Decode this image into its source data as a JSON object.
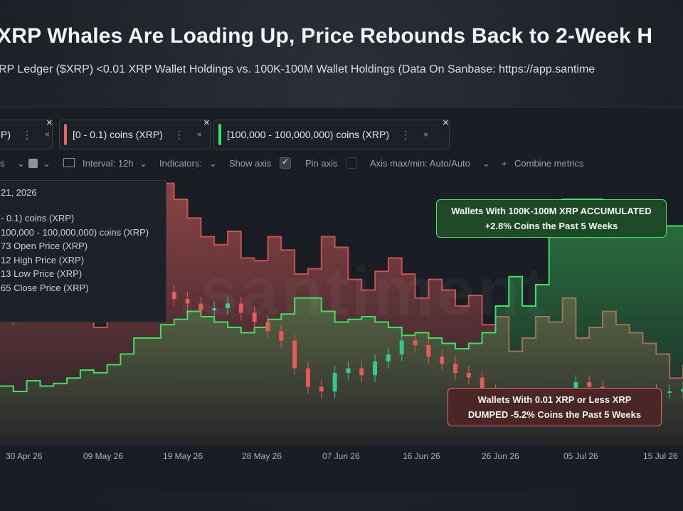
{
  "header": {
    "title": "XRP Whales Are Loading Up, Price Rebounds Back to 2-Week H",
    "subtitle": "RP Ledger ($XRP) <0.01 XRP Wallet Holdings vs. 100K-100M Wallet Holdings (Data On Sanbase: https://app.santime"
  },
  "tabs": [
    {
      "label": "P)",
      "color": "",
      "dots": "⋮",
      "close": "×"
    },
    {
      "label": "[0 - 0.1) coins (XRP)",
      "color": "#e8625f",
      "dots": "⋮",
      "close": "×"
    },
    {
      "label": "[100,000 - 100,000,000) coins (XRP)",
      "color": "#3ee062",
      "dots": "⋮",
      "close": "×"
    }
  ],
  "toolbar": {
    "interval": "Interval: 12h",
    "indicators": "Indicators:",
    "show_axis": "Show axis",
    "pin_axis": "Pin axis",
    "axis_maxmin": "Axis max/min: Auto/Auto",
    "combine": "Combine metrics",
    "plus": "+"
  },
  "tooltip": {
    "date": "21, 2026",
    "rows": [
      "- 0.1) coins (XRP)",
      "100,000  - 100,000,000) coins (XRP)",
      "73 Open Price (XRP)",
      "12 High Price (XRP)",
      "13 Low Price (XRP)",
      "65 Close Price (XRP)"
    ]
  },
  "watermark": ".santiment",
  "annotations": {
    "green_line1": "Wallets With 100K-100M XRP ACCUMULATED",
    "green_line2": "+2.8% Coins the Past 5 Weeks",
    "red_line1": "Wallets With 0.01 XRP or Less XRP",
    "red_line2": "DUMPED -5.2% Coins the Past 5 Weeks"
  },
  "colors": {
    "red": "#e8625f",
    "green": "#3ee062",
    "background": "#1a1d24"
  },
  "chart_data": {
    "type": "line",
    "x_ticks": [
      "30 Apr 26",
      "09 May 26",
      "19 May 26",
      "28 May 26",
      "07 Jun 26",
      "16 Jun 26",
      "26 Jun 26",
      "05 Jul 26",
      "15 Jul 26"
    ],
    "series": [
      {
        "name": "[0 - 0.1) coins (XRP)",
        "color": "#e8625f",
        "values": [
          0.62,
          0.52,
          0.58,
          0.55,
          0.47,
          0.52,
          0.62,
          0.44,
          0.48,
          0.6,
          0.57,
          0.55,
          0.98,
          0.92,
          0.85,
          0.78,
          0.75,
          0.8,
          0.7,
          0.69,
          0.78,
          0.73,
          0.64,
          0.66,
          0.78,
          0.74,
          0.62,
          0.58,
          0.65,
          0.7,
          0.64,
          0.55,
          0.62,
          0.58,
          0.52,
          0.56,
          0.45,
          0.48,
          0.35,
          0.4,
          0.48,
          0.46,
          0.55,
          0.4,
          0.44,
          0.5,
          0.45,
          0.42,
          0.38,
          0.34,
          0.25,
          0.3
        ]
      },
      {
        "name": "[100,000 - 100,000,000) coins (XRP)",
        "color": "#3ee062",
        "values": [
          0.22,
          0.2,
          0.24,
          0.22,
          0.23,
          0.25,
          0.28,
          0.27,
          0.3,
          0.34,
          0.4,
          0.4,
          0.45,
          0.47,
          0.5,
          0.48,
          0.46,
          0.44,
          0.42,
          0.44,
          0.47,
          0.49,
          0.55,
          0.55,
          0.5,
          0.46,
          0.47,
          0.48,
          0.46,
          0.44,
          0.41,
          0.42,
          0.4,
          0.38,
          0.36,
          0.38,
          0.42,
          0.52,
          0.63,
          0.52,
          0.6,
          0.85,
          0.92,
          0.92,
          0.92,
          0.86,
          0.82,
          0.81,
          0.81,
          0.82,
          0.82,
          0.82
        ]
      },
      {
        "name": "Close Price (XRP)",
        "color": "#cfd3d8",
        "values": [
          0.52,
          0.54,
          0.53,
          0.55,
          0.58,
          0.6,
          0.62,
          0.66,
          0.72,
          0.7,
          0.68,
          0.65,
          0.63,
          0.6,
          0.58,
          0.55,
          0.56,
          0.58,
          0.54,
          0.5,
          0.46,
          0.42,
          0.3,
          0.22,
          0.2,
          0.28,
          0.3,
          0.27,
          0.33,
          0.36,
          0.42,
          0.4,
          0.35,
          0.32,
          0.28,
          0.26,
          0.2,
          0.14,
          0.12,
          0.14,
          0.13,
          0.15,
          0.18,
          0.24,
          0.22,
          0.16,
          0.18,
          0.15,
          0.18,
          0.2,
          0.2,
          0.21
        ]
      }
    ],
    "grid": false,
    "legend": "top-left"
  }
}
